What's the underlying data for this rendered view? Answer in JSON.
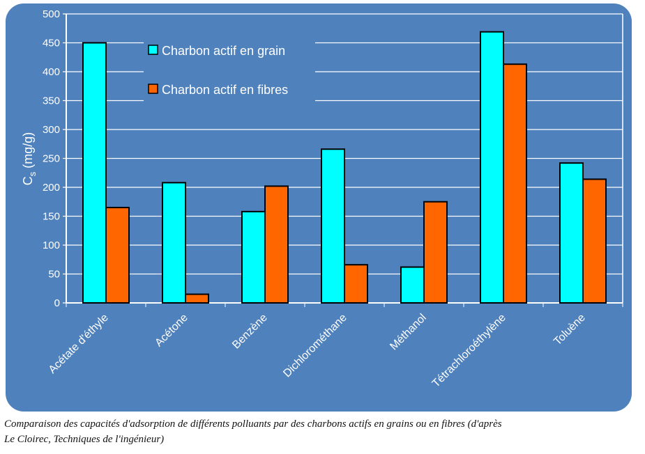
{
  "chart_data": {
    "type": "bar",
    "categories": [
      "Acétate d'éthyle",
      "Acétone",
      "Benzène",
      "Dichlorométhane",
      "Méthanol",
      "Tétrachloroéthylène",
      "Toluène"
    ],
    "series": [
      {
        "name": "Charbon actif en grain",
        "color": "#00ffff",
        "values": [
          450,
          208,
          158,
          266,
          62,
          469,
          242
        ]
      },
      {
        "name": "Charbon actif en fibres",
        "color": "#ff6600",
        "values": [
          165,
          15,
          202,
          66,
          175,
          413,
          214
        ]
      }
    ],
    "ylabel_main": "C",
    "ylabel_sub": "s",
    "ylabel_unit": "(mg/g)",
    "ylim": [
      0,
      500
    ],
    "yticks": [
      0,
      50,
      100,
      150,
      200,
      250,
      300,
      350,
      400,
      450,
      500
    ],
    "grid": true,
    "legend": "top-left",
    "background": "#4f81bd"
  },
  "caption": {
    "line1": "Comparaison des capacités d'adsorption de différents polluants par des charbons actifs en grains ou en fibres (d'après",
    "line2": "Le Cloirec, Techniques de l'ingénieur)"
  }
}
